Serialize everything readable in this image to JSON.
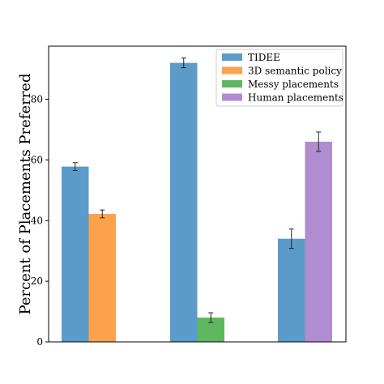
{
  "chart_data": {
    "type": "bar",
    "title": "",
    "xlabel": "",
    "ylabel": "Percent of Placements Preferred",
    "ylim": [
      0,
      100
    ],
    "yticks": [
      0,
      20,
      40,
      60,
      80
    ],
    "grid": false,
    "legend_position": "top-right",
    "groups": [
      {
        "bars": [
          {
            "series": "TIDEE",
            "value": 57.8,
            "error": 1.3
          },
          {
            "series": "3D semantic policy",
            "value": 42.2,
            "error": 1.3
          }
        ]
      },
      {
        "bars": [
          {
            "series": "TIDEE",
            "value": 92.0,
            "error": 1.6
          },
          {
            "series": "Messy placements",
            "value": 8.0,
            "error": 1.6
          }
        ]
      },
      {
        "bars": [
          {
            "series": "TIDEE",
            "value": 34.0,
            "error": 3.2
          },
          {
            "series": "Human placements",
            "value": 66.0,
            "error": 3.2
          }
        ]
      }
    ],
    "series": [
      {
        "name": "TIDEE",
        "color": "#5b9bc9"
      },
      {
        "name": "3D semantic policy",
        "color": "#fda24c"
      },
      {
        "name": "Messy placements",
        "color": "#5fb760"
      },
      {
        "name": "Human placements",
        "color": "#b08cd0"
      }
    ]
  }
}
